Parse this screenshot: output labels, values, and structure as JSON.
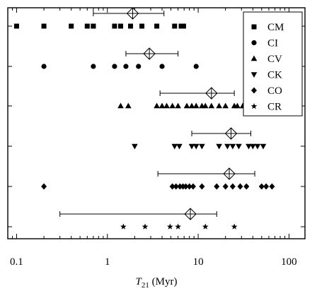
{
  "chart_data": {
    "type": "scatter",
    "title": "",
    "xlabel_main": "T",
    "xlabel_sub": "21",
    "xlabel_unit": " (Myr)",
    "xscale": "log",
    "xlim": [
      0.08,
      150
    ],
    "x_ticks": [
      {
        "value": 0.1,
        "label": "0.1"
      },
      {
        "value": 1,
        "label": "1"
      },
      {
        "value": 10,
        "label": "10"
      },
      {
        "value": 100,
        "label": "100"
      }
    ],
    "grid": false,
    "legend_position": "top-right",
    "series": [
      {
        "name": "CM",
        "marker": "square",
        "x": [
          0.1,
          0.2,
          0.4,
          0.6,
          0.7,
          0.7,
          1.2,
          1.4,
          1.8,
          2.4,
          3.5,
          5.5,
          6.5,
          6.9
        ],
        "mean": 1.9,
        "err_low": 0.7,
        "err_high": 4.2
      },
      {
        "name": "CI",
        "marker": "circle",
        "x": [
          0.2,
          0.7,
          1.2,
          1.6,
          2.2,
          4.0,
          9.5
        ],
        "mean": 2.9,
        "err_low": 1.6,
        "err_high": 6.0
      },
      {
        "name": "CV",
        "marker": "triangle-up",
        "x": [
          1.4,
          1.7,
          3.5,
          4.0,
          4.5,
          5.2,
          6.0,
          7.5,
          8.5,
          9.5,
          11,
          12,
          14,
          17,
          20,
          25,
          27,
          31,
          32
        ],
        "mean": 14,
        "err_low": 3.8,
        "err_high": 25
      },
      {
        "name": "CK",
        "marker": "triangle-down",
        "x": [
          2.0,
          5.5,
          6.2,
          8.5,
          9.5,
          11,
          17,
          21,
          24,
          28,
          36,
          40,
          45,
          52
        ],
        "mean": 23,
        "err_low": 8.5,
        "err_high": 38
      },
      {
        "name": "CO",
        "marker": "diamond",
        "x": [
          0.2,
          5.2,
          5.7,
          6.3,
          6.8,
          7.3,
          8.0,
          8.8,
          11,
          16,
          20,
          24,
          29,
          34,
          50,
          56,
          65
        ],
        "mean": 22,
        "err_low": 3.6,
        "err_high": 42
      },
      {
        "name": "CR",
        "marker": "star",
        "x": [
          1.5,
          2.6,
          4.9,
          6.0,
          12,
          25
        ],
        "mean": 8.2,
        "err_low": 0.3,
        "err_high": 16
      }
    ]
  }
}
